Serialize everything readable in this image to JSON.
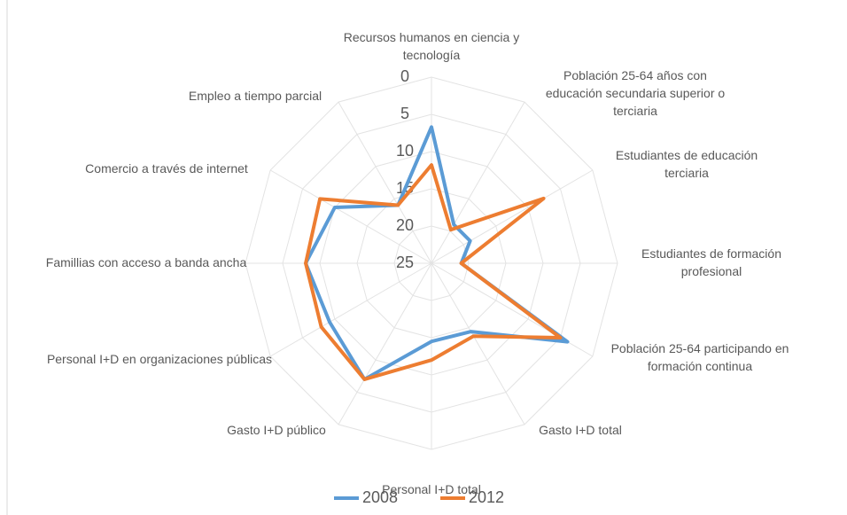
{
  "chart_data": {
    "type": "radar",
    "categories": [
      "Recursos humanos en ciencia y tecnología",
      "Población 25-64 años con educación secundaria superior o terciaria",
      "Estudiantes de educación terciaria",
      "Estudiantes de formación profesional",
      "Población 25-64 participando en formación continua",
      "Gasto I+D total",
      "Personal I+D total",
      "Gasto I+D público",
      "Personal I+D en organizaciones públicas",
      "Famillias con acceso a banda ancha",
      "Comercio a través de internet",
      "Empleo a tiempo parcial"
    ],
    "series": [
      {
        "name": "2008",
        "color": "#5b9bd5",
        "values": [
          6.7,
          19,
          19,
          21,
          3.9,
          14.4,
          14.5,
          7,
          9.2,
          8.1,
          10,
          16
        ]
      },
      {
        "name": "2012",
        "color": "#ed7d31",
        "values": [
          11.8,
          19.8,
          7.6,
          21,
          5,
          13.7,
          12,
          7,
          7.9,
          8.1,
          7.7,
          16
        ]
      }
    ],
    "ylim": [
      0,
      25
    ],
    "reversed": true,
    "yticks": [
      0,
      5,
      10,
      15,
      20,
      25
    ],
    "grid": true,
    "legend": "bottom"
  }
}
